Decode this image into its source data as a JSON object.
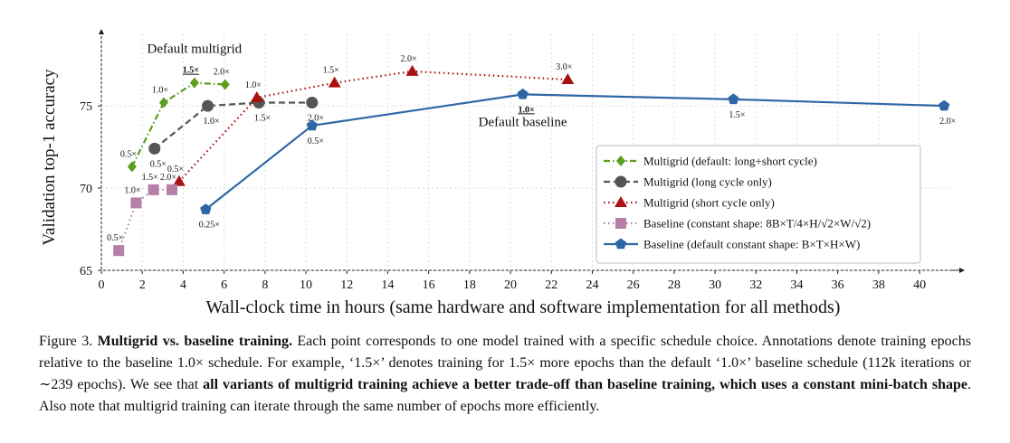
{
  "chart_data": {
    "type": "line",
    "xlabel": "Wall-clock time in hours (same hardware and software implementation for all methods)",
    "ylabel": "Validation top-1 accuracy",
    "xlim": [
      0,
      41.5
    ],
    "ylim": [
      65,
      78.8
    ],
    "xticks": [
      0,
      2,
      4,
      6,
      8,
      10,
      12,
      14,
      16,
      18,
      20,
      22,
      24,
      26,
      28,
      30,
      32,
      34,
      36,
      38,
      40
    ],
    "yticks": [
      65,
      70,
      75
    ],
    "legend": "lower right",
    "series": [
      {
        "name": "Multigrid (default: long+short cycle)",
        "color": "#5a9e1e",
        "dash": "dashdot",
        "marker": "diamond",
        "label_position": "above",
        "x": [
          1.5,
          3.05,
          4.55,
          6.05
        ],
        "values": [
          71.3,
          75.2,
          76.4,
          76.3
        ],
        "value_labels": [
          "0.5×",
          "1.0×",
          "1.5×",
          "2.0×"
        ]
      },
      {
        "name": "Multigrid (long cycle only)",
        "color": "#555555",
        "dash": "dashed",
        "marker": "circle",
        "label_position": "below",
        "x": [
          2.6,
          5.2,
          7.7,
          10.3
        ],
        "values": [
          72.4,
          75.0,
          75.2,
          75.2
        ],
        "value_labels": [
          "0.5×",
          "1.0×",
          "1.5×",
          "2.0×"
        ]
      },
      {
        "name": "Multigrid (short cycle only)",
        "color": "#aa1111",
        "dash": "dotted",
        "marker": "triangle",
        "label_position": "above",
        "x": [
          3.8,
          7.6,
          11.4,
          15.2,
          22.8
        ],
        "values": [
          70.4,
          75.5,
          76.4,
          77.1,
          76.6
        ],
        "value_labels": [
          "0.5×",
          "1.0×",
          "1.5×",
          "2.0×",
          "3.0×"
        ]
      },
      {
        "name": "Baseline (constant shape: 8B×T/4×H/√2×W/√2)",
        "color": "#b57fa8",
        "dash": "dotted",
        "marker": "square",
        "label_position": "above",
        "x": [
          0.85,
          1.7,
          2.55,
          3.45
        ],
        "values": [
          66.2,
          69.1,
          69.9,
          69.9
        ],
        "value_labels": [
          "0.5×",
          "1.0×",
          "1.5×",
          "2.0×"
        ]
      },
      {
        "name": "Baseline (default constant shape: B×T×H×W)",
        "color": "#2f67a6",
        "dash": "solid",
        "marker": "pentagon",
        "label_position": "below",
        "x": [
          5.1,
          10.3,
          20.6,
          30.9,
          41.2
        ],
        "values": [
          68.7,
          73.8,
          75.7,
          75.4,
          75.0
        ],
        "value_labels": [
          "0.25×",
          "0.5×",
          "1.0×",
          "1.5×",
          "2.0×"
        ]
      }
    ],
    "annotations": [
      {
        "text": "Default multigrid",
        "series": 0,
        "point": 2,
        "position": "above"
      },
      {
        "text": "Default baseline",
        "series": 4,
        "point": 2,
        "position": "below"
      }
    ]
  },
  "caption": [
    {
      "text": "Figure 3. ",
      "bold": false
    },
    {
      "text": "Multigrid vs. baseline training.",
      "bold": true
    },
    {
      "text": " Each point corresponds to one model trained with a specific schedule choice. Annotations denote training epochs relative to the baseline 1.0× schedule. For example, ‘1.5×’ denotes training for 1.5× more epochs than the default ‘1.0×’ baseline schedule (112k iterations or ∼239 epochs). We see that ",
      "bold": false
    },
    {
      "text": "all variants of multigrid training achieve a better trade-off than baseline training, which uses a constant mini-batch shape",
      "bold": true
    },
    {
      "text": ". Also note that multigrid training can iterate through the same number of epochs more efficiently.",
      "bold": false
    }
  ]
}
